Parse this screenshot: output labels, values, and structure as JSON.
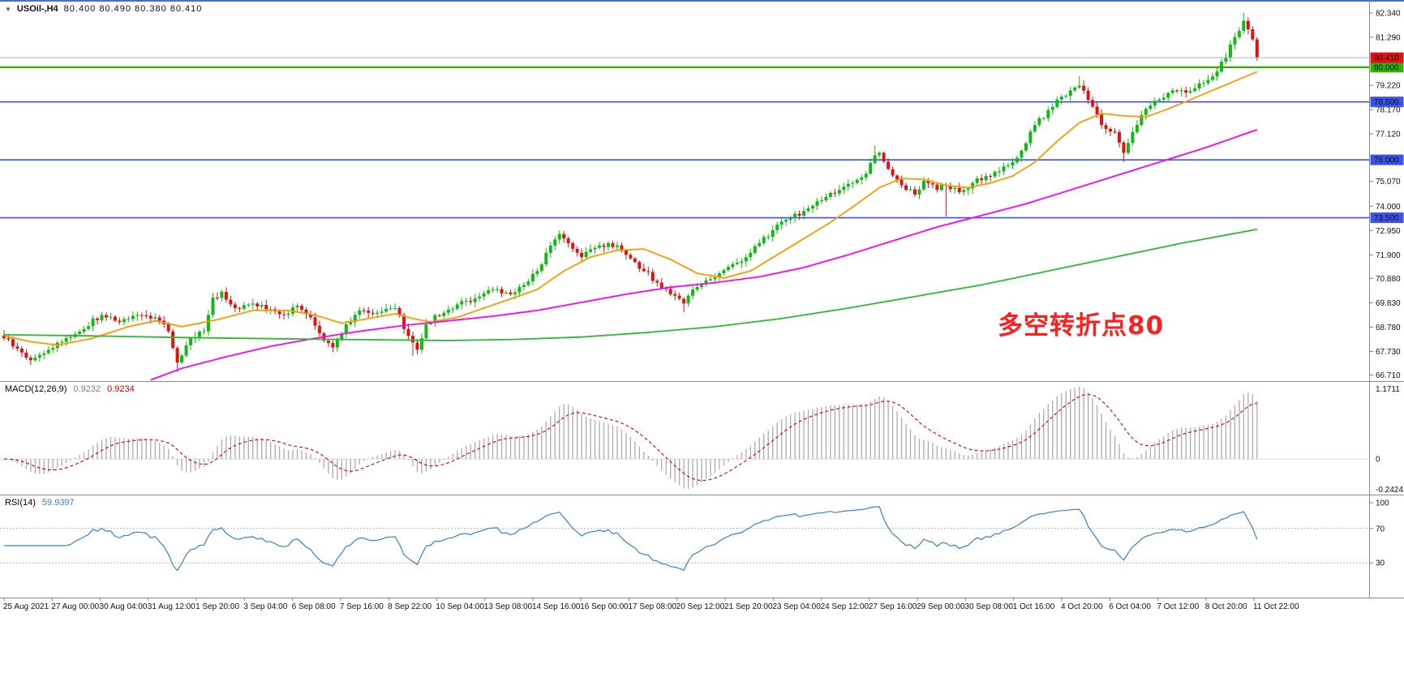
{
  "window": {
    "dropdown_icon": "▼",
    "symbol_timeframe": "USOil-,H4",
    "quote_ohlc": "80.400 80.490 80.380 80.410"
  },
  "colors": {
    "background": "#ffffff",
    "bull": "#12b912",
    "bear": "#e01212",
    "separator": "#8c8c8c",
    "top_border": "#4472c4",
    "macd_hist": "#ababab",
    "macd_signal": "#d90000",
    "macd_zero": "#dcdcdc",
    "rsi_line": "#3b7dd8",
    "rsi_level": "#b5b5b5",
    "axis_text": "#111111"
  },
  "main_panel": {
    "hlines": [
      {
        "label": "80.000",
        "value": 80.0,
        "color": "#2db200",
        "width": 2.2,
        "badge_bg": "#2db200",
        "badge_fg": "#1a1a1a"
      },
      {
        "label": "78.500",
        "value": 78.5,
        "color": "#3c52e8",
        "width": 1.6,
        "badge_bg": "#3c52e8",
        "badge_fg": "#ffffff"
      },
      {
        "label": "76.000",
        "value": 76.0,
        "color": "#3c52e8",
        "width": 1.6,
        "badge_bg": "#3c52e8",
        "badge_fg": "#ffffff"
      },
      {
        "label": "73.500",
        "value": 73.5,
        "color": "#3c52e8",
        "width": 1.6,
        "badge_bg": "#3c52e8",
        "badge_fg": "#ffffff"
      }
    ],
    "current_price": {
      "label": "80.410",
      "value": 80.41,
      "line_color": "#9db7d2",
      "badge_bg": "#e01212",
      "badge_fg": "#ffffff"
    },
    "annotation": {
      "text": "多空转折点80",
      "color": "#ff1f1f"
    }
  },
  "macd_panel": {
    "name": "MACD(12,26,9)",
    "value_main": "0.9232",
    "value_signal": "0.9234",
    "axis_max": "1.1711",
    "axis_zero": "0",
    "axis_min": "-0.2424"
  },
  "rsi_panel": {
    "name": "RSI(14)",
    "value": "59.9397",
    "axis_labels": [
      "100",
      "70",
      "30"
    ],
    "levels": [
      70,
      30
    ]
  },
  "chart_data": {
    "type": "candlestick",
    "title": "USOil-,H4",
    "symbol": "USOil",
    "timeframe": "H4",
    "last_ohlc": {
      "open": 80.4,
      "high": 80.49,
      "low": 80.38,
      "close": 80.41
    },
    "price_axis": {
      "min": 66.45,
      "max": 82.9,
      "tick_labels": [
        "82.340",
        "81.290",
        "79.220",
        "78.170",
        "77.120",
        "75.070",
        "74.000",
        "72.950",
        "71.900",
        "70.880",
        "69.830",
        "68.780",
        "67.730",
        "66.710"
      ]
    },
    "candle_count": 283,
    "close_waypoints": [
      [
        0,
        68.3
      ],
      [
        3,
        67.85
      ],
      [
        6,
        67.35
      ],
      [
        10,
        67.8
      ],
      [
        14,
        68.3
      ],
      [
        18,
        68.7
      ],
      [
        22,
        69.3
      ],
      [
        26,
        69.0
      ],
      [
        30,
        69.3
      ],
      [
        34,
        69.2
      ],
      [
        37,
        68.6
      ],
      [
        39,
        67.25
      ],
      [
        42,
        68.3
      ],
      [
        45,
        68.6
      ],
      [
        47,
        70.05
      ],
      [
        49,
        70.3
      ],
      [
        52,
        69.6
      ],
      [
        56,
        69.8
      ],
      [
        60,
        69.55
      ],
      [
        63,
        69.3
      ],
      [
        66,
        69.7
      ],
      [
        69,
        69.2
      ],
      [
        72,
        68.2
      ],
      [
        74,
        67.9
      ],
      [
        77,
        68.9
      ],
      [
        80,
        69.5
      ],
      [
        84,
        69.4
      ],
      [
        88,
        69.6
      ],
      [
        91,
        68.4
      ],
      [
        93,
        67.8
      ],
      [
        95,
        68.9
      ],
      [
        99,
        69.4
      ],
      [
        103,
        69.9
      ],
      [
        107,
        70.1
      ],
      [
        110,
        70.4
      ],
      [
        114,
        70.2
      ],
      [
        117,
        70.6
      ],
      [
        120,
        71.2
      ],
      [
        123,
        72.3
      ],
      [
        125,
        72.8
      ],
      [
        127,
        72.4
      ],
      [
        130,
        71.8
      ],
      [
        133,
        72.2
      ],
      [
        136,
        72.4
      ],
      [
        140,
        71.9
      ],
      [
        143,
        71.3
      ],
      [
        147,
        70.7
      ],
      [
        150,
        70.2
      ],
      [
        153,
        69.8
      ],
      [
        155,
        70.4
      ],
      [
        158,
        70.8
      ],
      [
        161,
        71.1
      ],
      [
        164,
        71.5
      ],
      [
        167,
        71.8
      ],
      [
        170,
        72.4
      ],
      [
        174,
        73.2
      ],
      [
        177,
        73.5
      ],
      [
        181,
        73.9
      ],
      [
        185,
        74.4
      ],
      [
        188,
        74.7
      ],
      [
        191,
        75.0
      ],
      [
        194,
        75.4
      ],
      [
        196,
        76.2
      ],
      [
        197,
        76.3
      ],
      [
        199,
        75.6
      ],
      [
        202,
        74.9
      ],
      [
        205,
        74.5
      ],
      [
        207,
        75.1
      ],
      [
        210,
        74.7
      ],
      [
        212,
        74.9
      ],
      [
        215,
        74.6
      ],
      [
        218,
        75.0
      ],
      [
        221,
        75.3
      ],
      [
        224,
        75.5
      ],
      [
        227,
        75.9
      ],
      [
        229,
        76.4
      ],
      [
        232,
        77.5
      ],
      [
        234,
        77.8
      ],
      [
        237,
        78.6
      ],
      [
        240,
        79.0
      ],
      [
        242,
        79.2
      ],
      [
        245,
        78.3
      ],
      [
        247,
        77.5
      ],
      [
        250,
        77.2
      ],
      [
        252,
        76.3
      ],
      [
        254,
        77.2
      ],
      [
        257,
        78.2
      ],
      [
        260,
        78.6
      ],
      [
        263,
        79.0
      ],
      [
        266,
        78.9
      ],
      [
        269,
        79.3
      ],
      [
        272,
        79.6
      ],
      [
        275,
        80.4
      ],
      [
        277,
        81.3
      ],
      [
        279,
        82.0
      ],
      [
        281,
        81.2
      ],
      [
        282,
        80.41
      ]
    ],
    "wick_overrides": [
      [
        39,
        "low",
        66.85
      ],
      [
        92,
        "low",
        67.55
      ],
      [
        125,
        "high",
        72.95
      ],
      [
        153,
        "low",
        69.42
      ],
      [
        196,
        "high",
        76.62
      ],
      [
        212,
        "low",
        73.55
      ],
      [
        242,
        "high",
        79.62
      ],
      [
        252,
        "low",
        75.9
      ],
      [
        279,
        "high",
        82.34
      ]
    ],
    "moving_averages": [
      {
        "name": "ma-fast-orange",
        "color": "#ff9900",
        "points": [
          [
            0,
            68.4
          ],
          [
            6,
            68.15
          ],
          [
            12,
            68.0
          ],
          [
            20,
            68.3
          ],
          [
            28,
            68.8
          ],
          [
            34,
            69.05
          ],
          [
            40,
            68.8
          ],
          [
            48,
            69.1
          ],
          [
            56,
            69.5
          ],
          [
            64,
            69.5
          ],
          [
            70,
            69.3
          ],
          [
            76,
            68.95
          ],
          [
            82,
            69.15
          ],
          [
            88,
            69.35
          ],
          [
            92,
            69.15
          ],
          [
            96,
            69.0
          ],
          [
            102,
            69.2
          ],
          [
            108,
            69.6
          ],
          [
            114,
            70.0
          ],
          [
            120,
            70.4
          ],
          [
            126,
            71.2
          ],
          [
            132,
            71.8
          ],
          [
            138,
            72.1
          ],
          [
            144,
            72.15
          ],
          [
            150,
            71.7
          ],
          [
            156,
            71.1
          ],
          [
            162,
            70.9
          ],
          [
            168,
            71.2
          ],
          [
            174,
            71.9
          ],
          [
            180,
            72.6
          ],
          [
            186,
            73.3
          ],
          [
            192,
            74.1
          ],
          [
            197,
            74.8
          ],
          [
            202,
            75.2
          ],
          [
            207,
            75.15
          ],
          [
            212,
            74.9
          ],
          [
            217,
            74.8
          ],
          [
            222,
            75.0
          ],
          [
            227,
            75.3
          ],
          [
            232,
            75.9
          ],
          [
            237,
            76.8
          ],
          [
            242,
            77.6
          ],
          [
            247,
            78.0
          ],
          [
            252,
            77.9
          ],
          [
            257,
            77.85
          ],
          [
            262,
            78.2
          ],
          [
            267,
            78.6
          ],
          [
            272,
            79.0
          ],
          [
            277,
            79.4
          ],
          [
            282,
            79.8
          ]
        ]
      },
      {
        "name": "ma-mid-magenta",
        "color": "#ff00ff",
        "points": [
          [
            33,
            66.5
          ],
          [
            40,
            67.0
          ],
          [
            50,
            67.5
          ],
          [
            60,
            67.95
          ],
          [
            70,
            68.3
          ],
          [
            80,
            68.6
          ],
          [
            90,
            68.85
          ],
          [
            100,
            69.05
          ],
          [
            110,
            69.25
          ],
          [
            120,
            69.5
          ],
          [
            130,
            69.85
          ],
          [
            140,
            70.2
          ],
          [
            150,
            70.5
          ],
          [
            160,
            70.7
          ],
          [
            170,
            70.95
          ],
          [
            180,
            71.35
          ],
          [
            190,
            71.9
          ],
          [
            200,
            72.5
          ],
          [
            210,
            73.1
          ],
          [
            220,
            73.6
          ],
          [
            230,
            74.1
          ],
          [
            240,
            74.7
          ],
          [
            250,
            75.3
          ],
          [
            260,
            75.9
          ],
          [
            270,
            76.5
          ],
          [
            282,
            77.3
          ]
        ]
      },
      {
        "name": "ma-slow-green",
        "color": "#2eb82e",
        "points": [
          [
            0,
            68.45
          ],
          [
            20,
            68.4
          ],
          [
            40,
            68.33
          ],
          [
            60,
            68.28
          ],
          [
            80,
            68.24
          ],
          [
            100,
            68.2
          ],
          [
            115,
            68.25
          ],
          [
            130,
            68.35
          ],
          [
            145,
            68.55
          ],
          [
            160,
            68.8
          ],
          [
            175,
            69.15
          ],
          [
            190,
            69.6
          ],
          [
            205,
            70.1
          ],
          [
            220,
            70.6
          ],
          [
            235,
            71.2
          ],
          [
            250,
            71.8
          ],
          [
            265,
            72.4
          ],
          [
            282,
            73.0
          ]
        ]
      }
    ],
    "indicators": [
      {
        "type": "MACD",
        "params": [
          12,
          26,
          9
        ],
        "current": [
          0.9232,
          0.9234
        ],
        "axis_range": [
          -0.2424,
          1.1711
        ]
      },
      {
        "type": "RSI",
        "params": [
          14
        ],
        "current": 59.9397,
        "levels": [
          70,
          30
        ],
        "axis_range": [
          0,
          100
        ]
      }
    ],
    "time_labels": [
      "25 Aug 2021",
      "27 Aug 00:00",
      "30 Aug 04:00",
      "31 Aug 12:00",
      "1 Sep 20:00",
      "3 Sep 04:00",
      "6 Sep 08:00",
      "7 Sep 16:00",
      "8 Sep 22:00",
      "10 Sep 04:00",
      "13 Sep 08:00",
      "14 Sep 16:00",
      "16 Sep 00:00",
      "17 Sep 08:00",
      "20 Sep 12:00",
      "21 Sep 20:00",
      "23 Sep 04:00",
      "24 Sep 12:00",
      "27 Sep 16:00",
      "29 Sep 00:00",
      "30 Sep 08:00",
      "1 Oct 16:00",
      "4 Oct 20:00",
      "6 Oct 04:00",
      "7 Oct 12:00",
      "8 Oct 20:00",
      "11 Oct 22:00"
    ]
  }
}
